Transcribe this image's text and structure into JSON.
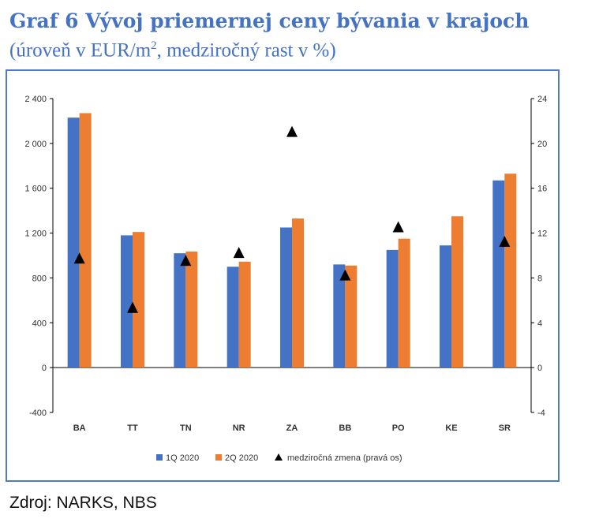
{
  "header": {
    "title": "Graf 6 Vývoj priemernej ceny bývania v krajoch",
    "subtitle_pre": "(úroveň v EUR/m",
    "subtitle_sup": "2",
    "subtitle_post": ", medziročný rast v %)"
  },
  "source": "Zdroj: NARKS, NBS",
  "chart_data": {
    "type": "bar",
    "categories": [
      "BA",
      "TT",
      "TN",
      "NR",
      "ZA",
      "BB",
      "PO",
      "KE",
      "SR"
    ],
    "series": [
      {
        "name": "1Q 2020",
        "type": "bar",
        "axis": "left",
        "color": "#4472c4",
        "values": [
          2230,
          1180,
          1020,
          900,
          1250,
          920,
          1050,
          1090,
          1670
        ]
      },
      {
        "name": "2Q 2020",
        "type": "bar",
        "axis": "left",
        "color": "#ed7d31",
        "values": [
          2270,
          1210,
          1035,
          945,
          1330,
          910,
          1150,
          1350,
          1730
        ]
      },
      {
        "name": "medziročná zmena (pravá os)",
        "type": "marker",
        "axis": "right",
        "color": "#000000",
        "marker": "triangle",
        "values": [
          9.7,
          5.3,
          9.5,
          10.2,
          21,
          8.2,
          12.5,
          null,
          11.2
        ]
      }
    ],
    "left_axis": {
      "ylim": [
        -400,
        2400
      ],
      "ticks": [
        -400,
        0,
        400,
        800,
        1200,
        1600,
        2000,
        2400
      ],
      "tick_labels": [
        "-400",
        "0",
        "400",
        "800",
        "1 200",
        "1 600",
        "2 000",
        "2 400"
      ]
    },
    "right_axis": {
      "ylim": [
        -4,
        24
      ],
      "ticks": [
        -4,
        0,
        4,
        8,
        12,
        16,
        20,
        24
      ],
      "tick_labels": [
        "-4",
        "0",
        "4",
        "8",
        "12",
        "16",
        "20",
        "24"
      ]
    },
    "grid": false,
    "legend_position": "bottom"
  }
}
